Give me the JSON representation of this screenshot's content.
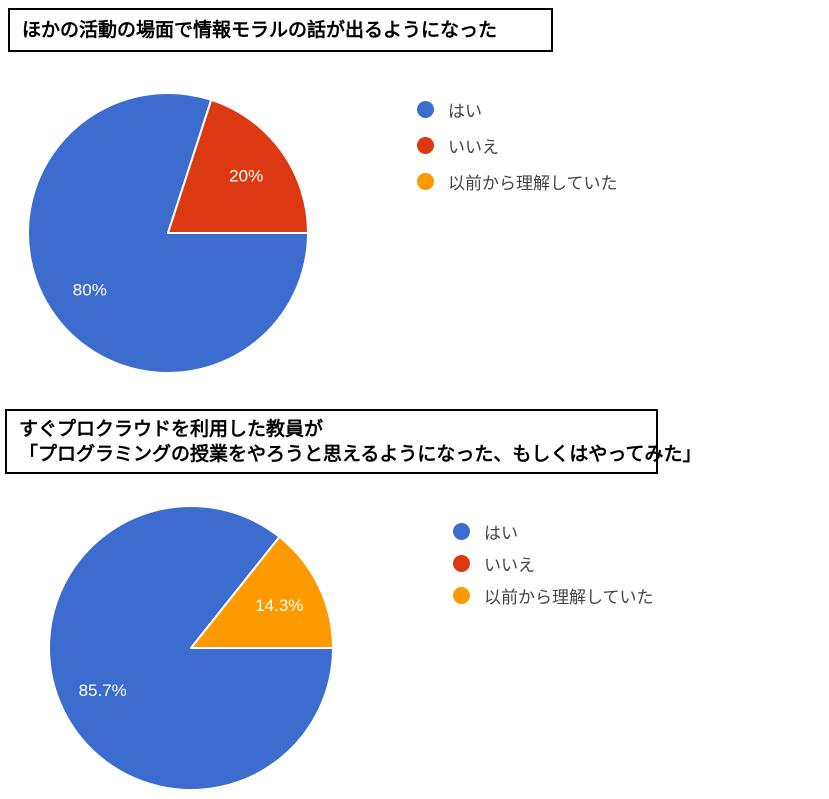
{
  "page": {
    "background_color": "#ffffff"
  },
  "chart_data": [
    {
      "type": "pie",
      "title": "ほかの活動の場面で情報モラルの話が出るようになった",
      "title_lines": [
        "ほかの活動の場面で情報モラルの話が出るようになった"
      ],
      "labels": [
        "はい",
        "いいえ",
        "以前から理解していた"
      ],
      "values": [
        80,
        20,
        0
      ],
      "percent_labels": [
        "80%",
        "20%",
        ""
      ],
      "colors": [
        "#3b6cce",
        "#dc3912",
        "#ff9900"
      ],
      "start_angle_deg_clockwise_from_top": 90,
      "direction": "clockwise",
      "legend_position": "right",
      "slice_label_color": "#ffffff"
    },
    {
      "type": "pie",
      "title": "すぐプロクラウドを利用した教員が「プログラミングの授業をやろうと思えるようになった、もしくはやってみた」",
      "title_lines": [
        "すぐプロクラウドを利用した教員が",
        "「プログラミングの授業をやろうと思えるようになった、もしくはやってみた」"
      ],
      "labels": [
        "はい",
        "いいえ",
        "以前から理解していた"
      ],
      "values": [
        85.7,
        0,
        14.3
      ],
      "percent_labels": [
        "85.7%",
        "",
        "14.3%"
      ],
      "colors": [
        "#3b6cce",
        "#dc3912",
        "#ff9900"
      ],
      "start_angle_deg_clockwise_from_top": 90,
      "direction": "clockwise",
      "legend_position": "right",
      "slice_label_color": "#ffffff"
    }
  ]
}
